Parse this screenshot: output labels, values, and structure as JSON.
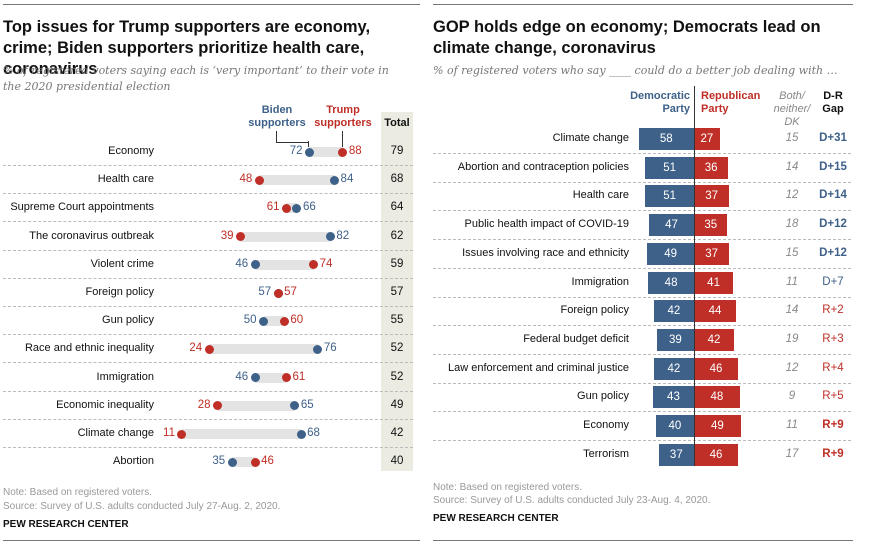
{
  "chart_data": [
    {
      "type": "dot-plot",
      "title": "Top issues for Trump supporters are economy, crime; Biden supporters prioritize health care, coronavirus",
      "subtitle": "% of registered voters saying each is ‘very important’ to their vote in the 2020 presidential election",
      "legend": {
        "biden": "Biden supporters",
        "trump": "Trump supporters",
        "total": "Total"
      },
      "colors": {
        "biden": "#3e6189",
        "trump": "#bf2f27"
      },
      "categories": [
        "Economy",
        "Health care",
        "Supreme Court appointments",
        "The coronavirus outbreak",
        "Violent crime",
        "Foreign policy",
        "Gun policy",
        "Race and ethnic inequality",
        "Immigration",
        "Economic inequality",
        "Climate change",
        "Abortion"
      ],
      "series": [
        {
          "name": "Biden supporters",
          "values": [
            72,
            84,
            66,
            82,
            46,
            57,
            50,
            76,
            46,
            65,
            68,
            35
          ]
        },
        {
          "name": "Trump supporters",
          "values": [
            88,
            48,
            61,
            39,
            74,
            57,
            60,
            24,
            61,
            28,
            11,
            46
          ]
        },
        {
          "name": "Total",
          "values": [
            79,
            68,
            64,
            62,
            59,
            57,
            55,
            52,
            52,
            49,
            42,
            40
          ]
        }
      ],
      "xlim": [
        0,
        100
      ],
      "note": "Note: Based on registered voters.",
      "source": "Source: Survey of U.S. adults conducted July 27-Aug. 2, 2020.",
      "brand": "PEW RESEARCH CENTER"
    },
    {
      "type": "bar",
      "orientation": "diverging-horizontal",
      "title": "GOP holds edge on economy; Democrats lead on climate change, coronavirus",
      "subtitle": "% of registered voters who say ____ could do a better job dealing with …",
      "headers": {
        "dem": "Democratic Party",
        "rep": "Republican Party",
        "both": "Both/ neither/ DK",
        "gap": "D-R Gap"
      },
      "colors": {
        "dem": "#3e6189",
        "rep": "#bf2f27"
      },
      "categories": [
        "Climate change",
        "Abortion and contraception policies",
        "Health care",
        "Public health impact of COVID-19",
        "Issues involving race and ethnicity",
        "Immigration",
        "Foreign policy",
        "Federal budget deficit",
        "Law enforcement and criminal justice",
        "Gun policy",
        "Economy",
        "Terrorism"
      ],
      "series": [
        {
          "name": "Democratic Party",
          "values": [
            58,
            51,
            51,
            47,
            49,
            48,
            42,
            39,
            42,
            43,
            40,
            37
          ]
        },
        {
          "name": "Republican Party",
          "values": [
            27,
            36,
            37,
            35,
            37,
            41,
            44,
            42,
            46,
            48,
            49,
            46
          ]
        },
        {
          "name": "Both/neither/DK",
          "values": [
            15,
            14,
            12,
            18,
            15,
            11,
            14,
            19,
            12,
            9,
            11,
            17
          ]
        }
      ],
      "gap": [
        {
          "label": "D+31",
          "party": "dem",
          "bold": true
        },
        {
          "label": "D+15",
          "party": "dem",
          "bold": true
        },
        {
          "label": "D+14",
          "party": "dem",
          "bold": true
        },
        {
          "label": "D+12",
          "party": "dem",
          "bold": true
        },
        {
          "label": "D+12",
          "party": "dem",
          "bold": true
        },
        {
          "label": "D+7",
          "party": "dem",
          "bold": false
        },
        {
          "label": "R+2",
          "party": "rep",
          "bold": false
        },
        {
          "label": "R+3",
          "party": "rep",
          "bold": false
        },
        {
          "label": "R+4",
          "party": "rep",
          "bold": false
        },
        {
          "label": "R+5",
          "party": "rep",
          "bold": false
        },
        {
          "label": "R+9",
          "party": "rep",
          "bold": true
        },
        {
          "label": "R+9",
          "party": "rep",
          "bold": true
        }
      ],
      "note": "Note: Based on registered voters.",
      "source": "Source: Survey of U.S. adults conducted July 23-Aug. 4, 2020.",
      "brand": "PEW RESEARCH CENTER"
    }
  ]
}
